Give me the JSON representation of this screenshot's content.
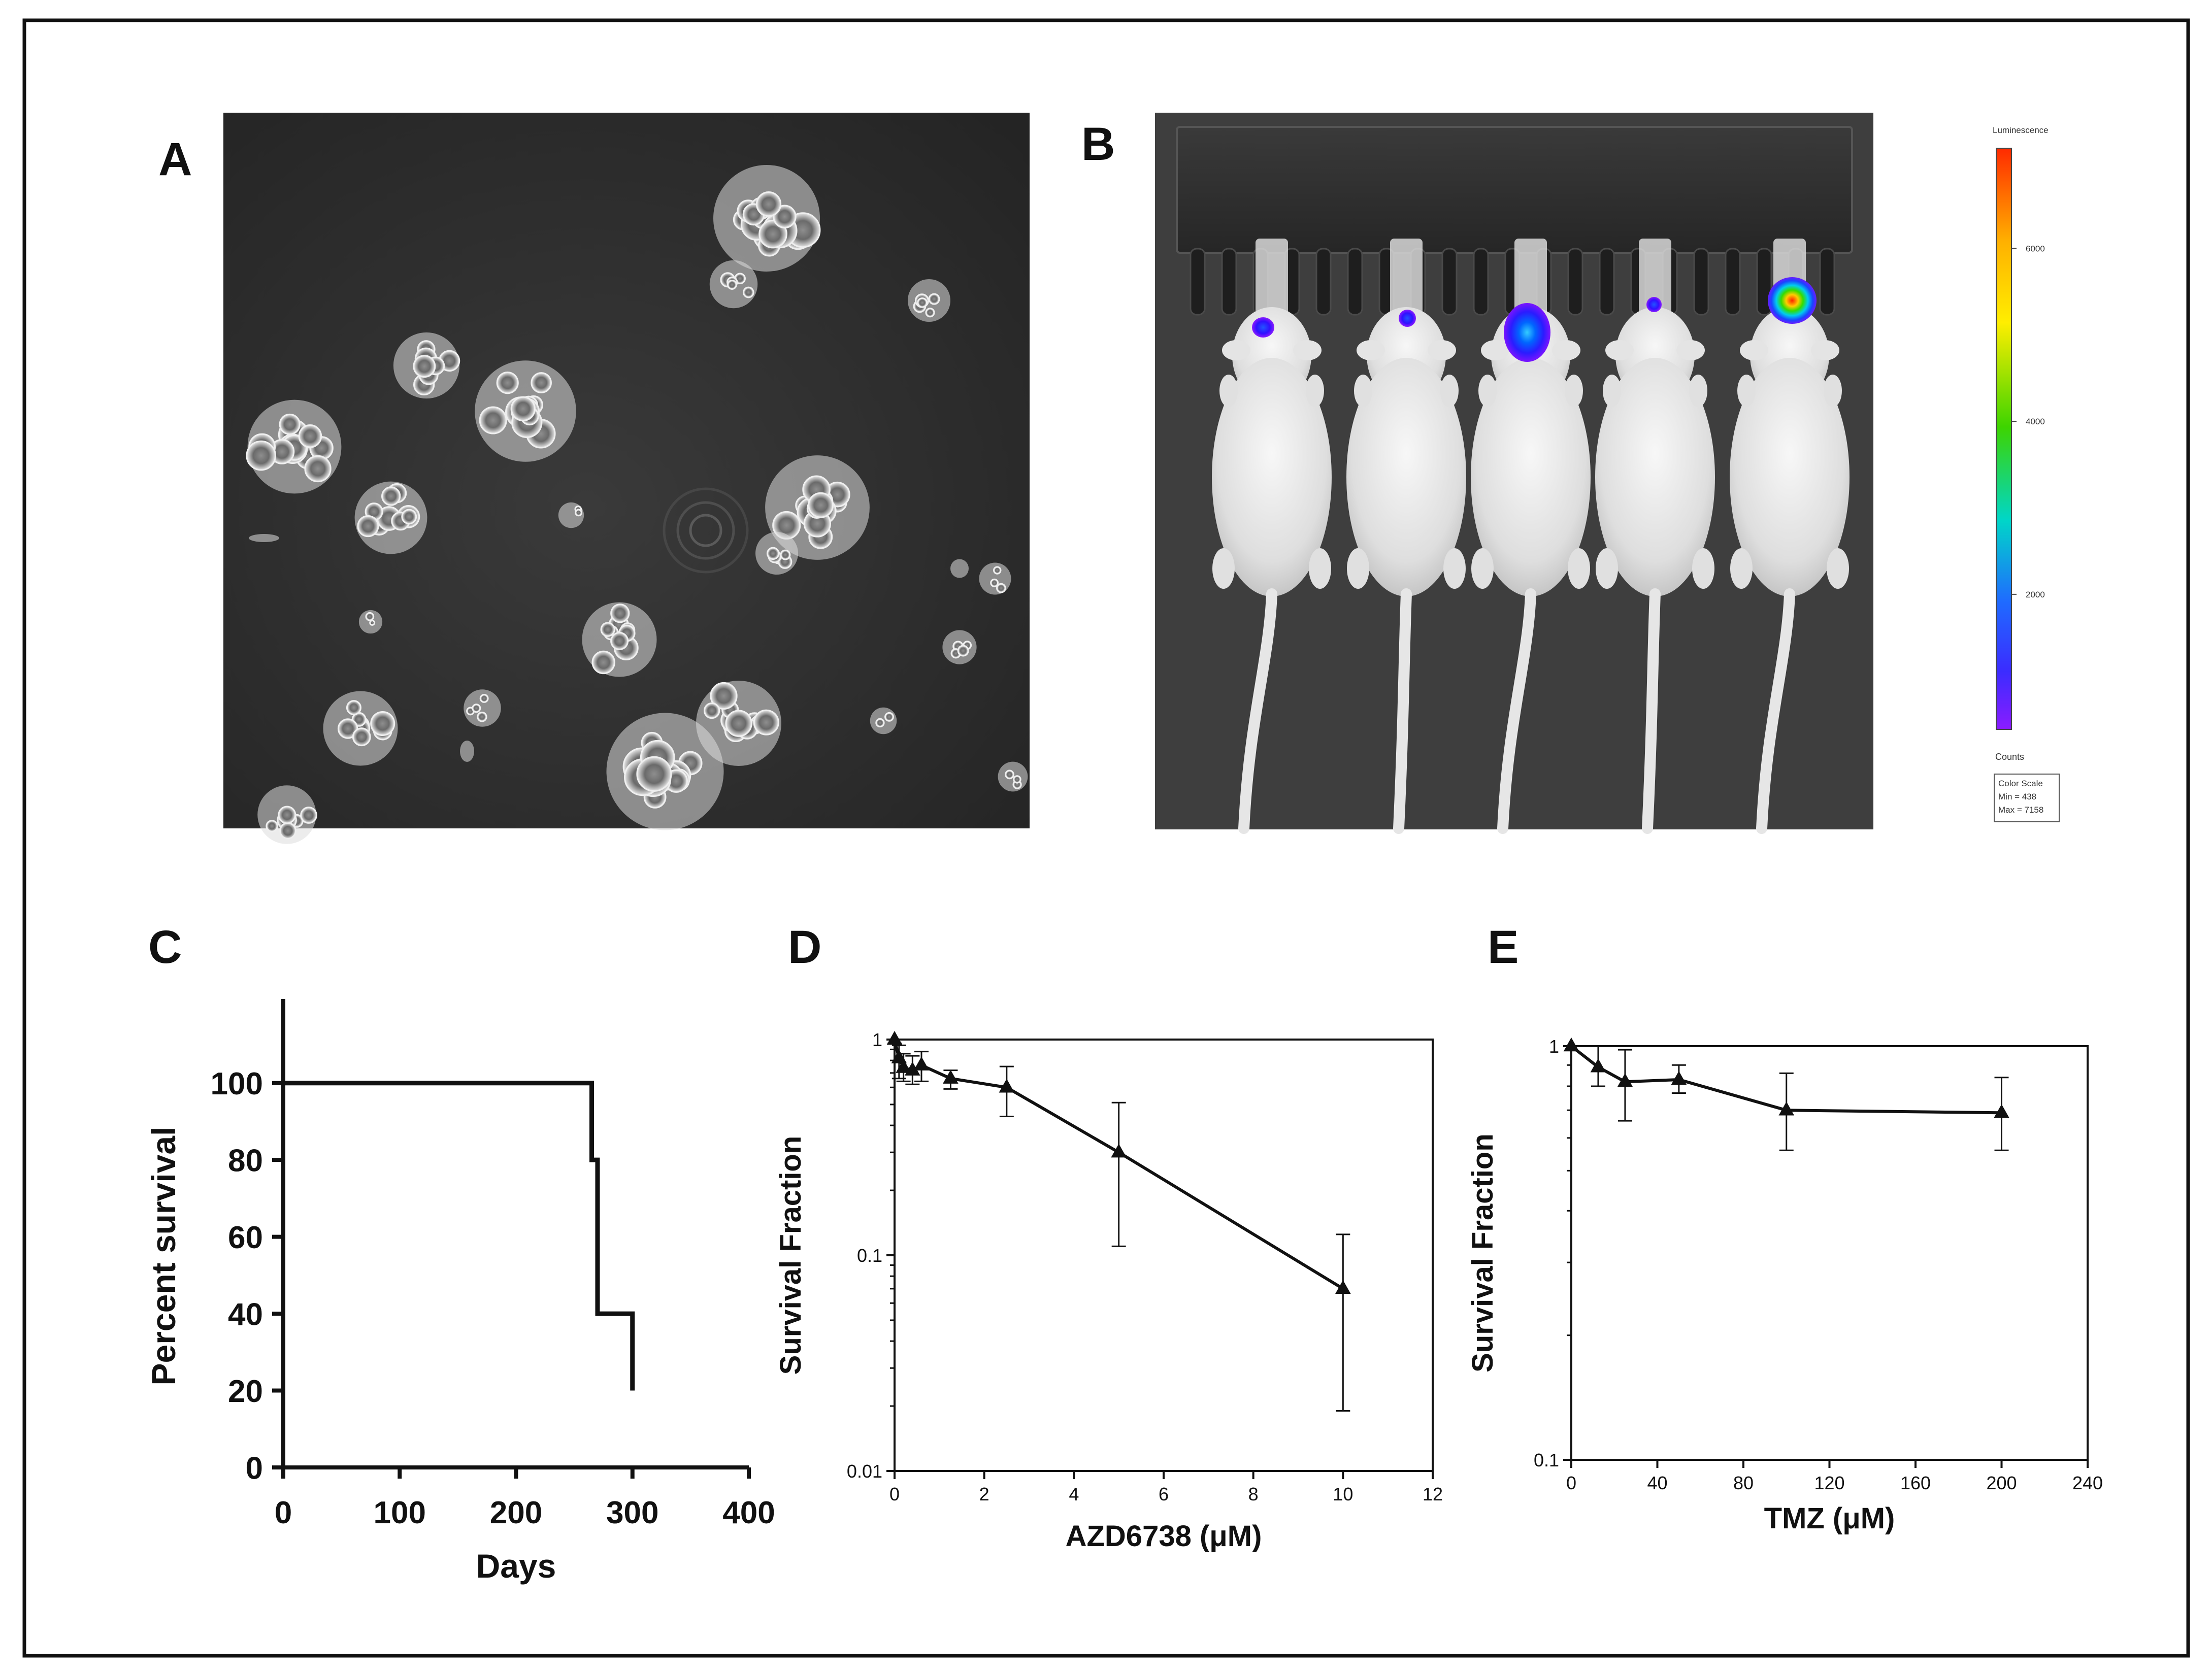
{
  "panels": {
    "a": {
      "label": "A"
    },
    "b": {
      "label": "B"
    },
    "c": {
      "label": "C"
    },
    "d": {
      "label": "D"
    },
    "e": {
      "label": "E"
    }
  },
  "colorbar": {
    "title": "Luminescence",
    "ticks": [
      "6000",
      "4000",
      "2000"
    ],
    "tick_values": [
      6000,
      4000,
      2000
    ],
    "range": [
      438,
      7158
    ],
    "units": "Counts",
    "legend_lines": [
      "Color Scale",
      "Min = 438",
      "Max = 7158"
    ],
    "colors": [
      "#ff2a00",
      "#ffb000",
      "#ffee00",
      "#3dd400",
      "#00d6c8",
      "#1f6bff",
      "#3b2cff",
      "#8a1cff"
    ]
  },
  "chart_data": [
    {
      "panel": "C",
      "type": "line",
      "step": true,
      "xlabel": "Days",
      "ylabel": "Percent survival",
      "xlim": [
        0,
        400
      ],
      "ylim": [
        0,
        110
      ],
      "xticks": [
        0,
        100,
        200,
        300,
        400
      ],
      "yticks": [
        0,
        20,
        40,
        60,
        80,
        100
      ],
      "grid": false,
      "series": [
        {
          "x": [
            0,
            265,
            265,
            270,
            270,
            300,
            300
          ],
          "y": [
            100,
            100,
            80,
            80,
            40,
            40,
            20
          ]
        }
      ]
    },
    {
      "panel": "D",
      "type": "line",
      "xlabel": "AZD6738 (μM)",
      "ylabel": "Survival Fraction",
      "yscale": "log",
      "xlim": [
        0,
        12
      ],
      "ylim": [
        0.01,
        1
      ],
      "xticks": [
        0,
        2,
        4,
        6,
        8,
        10,
        12
      ],
      "yticks": [
        0.01,
        0.1,
        1
      ],
      "ytick_labels": [
        "0.01",
        "0.1",
        "1"
      ],
      "grid": false,
      "series": [
        {
          "x": [
            0,
            0.1,
            0.2,
            0.4,
            0.6,
            1.25,
            2.5,
            5,
            10
          ],
          "y": [
            1.0,
            0.82,
            0.74,
            0.72,
            0.76,
            0.66,
            0.6,
            0.3,
            0.07
          ],
          "err_low": [
            0.96,
            0.66,
            0.64,
            0.62,
            0.64,
            0.59,
            0.44,
            0.11,
            0.019
          ],
          "err_high": [
            1.0,
            0.94,
            0.86,
            0.84,
            0.88,
            0.72,
            0.75,
            0.51,
            0.125
          ]
        }
      ]
    },
    {
      "panel": "E",
      "type": "line",
      "xlabel": "TMZ (μM)",
      "ylabel": "Survival Fraction",
      "yscale": "log",
      "xlim": [
        0,
        240
      ],
      "ylim": [
        0.1,
        1
      ],
      "xticks": [
        0,
        40,
        80,
        120,
        160,
        200,
        240
      ],
      "yticks": [
        0.1,
        1
      ],
      "ytick_labels": [
        "0.1",
        "1"
      ],
      "grid": false,
      "series": [
        {
          "x": [
            0,
            12.5,
            25,
            50,
            100,
            200
          ],
          "y": [
            1.0,
            0.89,
            0.82,
            0.83,
            0.7,
            0.69
          ],
          "err_low": [
            1.0,
            0.8,
            0.66,
            0.77,
            0.56,
            0.56
          ],
          "err_high": [
            1.0,
            1.0,
            0.98,
            0.9,
            0.86,
            0.84
          ]
        }
      ]
    }
  ]
}
